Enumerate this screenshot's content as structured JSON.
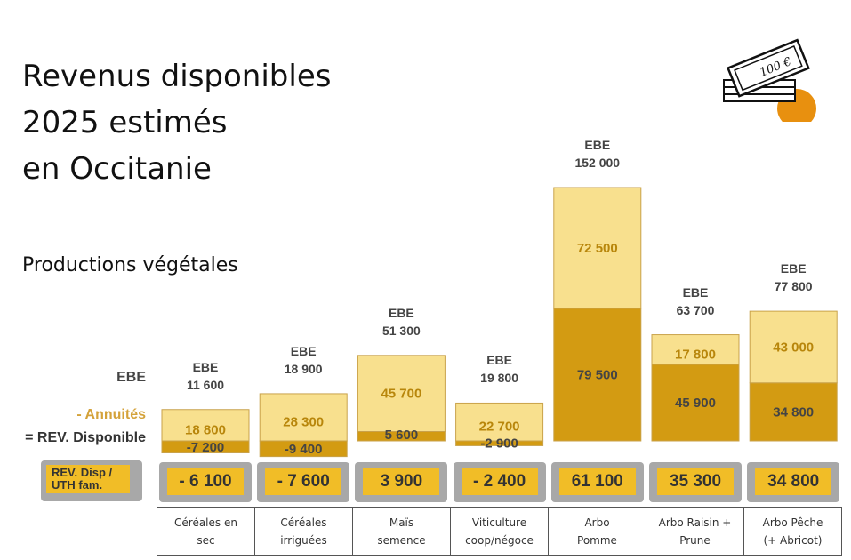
{
  "title_lines": [
    "Revenus disponibles",
    "2025 estimés",
    "en Occitanie"
  ],
  "subtitle": "Productions végétales",
  "legend": {
    "ebe": "EBE",
    "annuites": "- Annuités",
    "rev": "= REV. Disponible",
    "rev_uth": "REV. Disp / UTH fam."
  },
  "icon": "banknote-stack-icon",
  "money_label": "100 €",
  "colors": {
    "annuites": "#f8e08e",
    "rev_disponible": "#d39b12",
    "rev_uth_box": "#f1bd27",
    "box_border": "#a8a8a8",
    "annuites_text": "#b8860b"
  },
  "chart_data": {
    "type": "bar",
    "stacked": true,
    "categories": [
      "Céréales en\nsec",
      "Céréales\nirriguées",
      "Maïs\nsemence",
      "Viticulture\ncoop/négoce",
      "Arbo\nPomme",
      "Arbo Raisin +\nPrune",
      "Arbo Pêche\n(+ Abricot)"
    ],
    "ebe_label": "EBE",
    "ebe": [
      "11 600",
      "18 900",
      "51 300",
      "19 800",
      "152 000",
      "63 700",
      "77 800"
    ],
    "ebe_values": [
      11600,
      18900,
      51300,
      19800,
      152000,
      63700,
      77800
    ],
    "series": [
      {
        "name": "- Annuités",
        "values": [
          18800,
          28300,
          45700,
          22700,
          72500,
          17800,
          43000
        ],
        "labels": [
          "18 800",
          "28 300",
          "45 700",
          "22 700",
          "72 500",
          "17 800",
          "43 000"
        ]
      },
      {
        "name": "= REV. Disponible",
        "values": [
          -7200,
          -9400,
          5600,
          -2900,
          79500,
          45900,
          34800
        ],
        "labels": [
          "-7 200",
          "-9 400",
          "5 600",
          "-2 900",
          "79 500",
          "45 900",
          "34 800"
        ]
      }
    ],
    "rev_uth_fam": [
      "- 6 100",
      "- 7 600",
      "3 900",
      "- 2 400",
      "61 100",
      "35 300",
      "34 800"
    ],
    "grid": false
  }
}
